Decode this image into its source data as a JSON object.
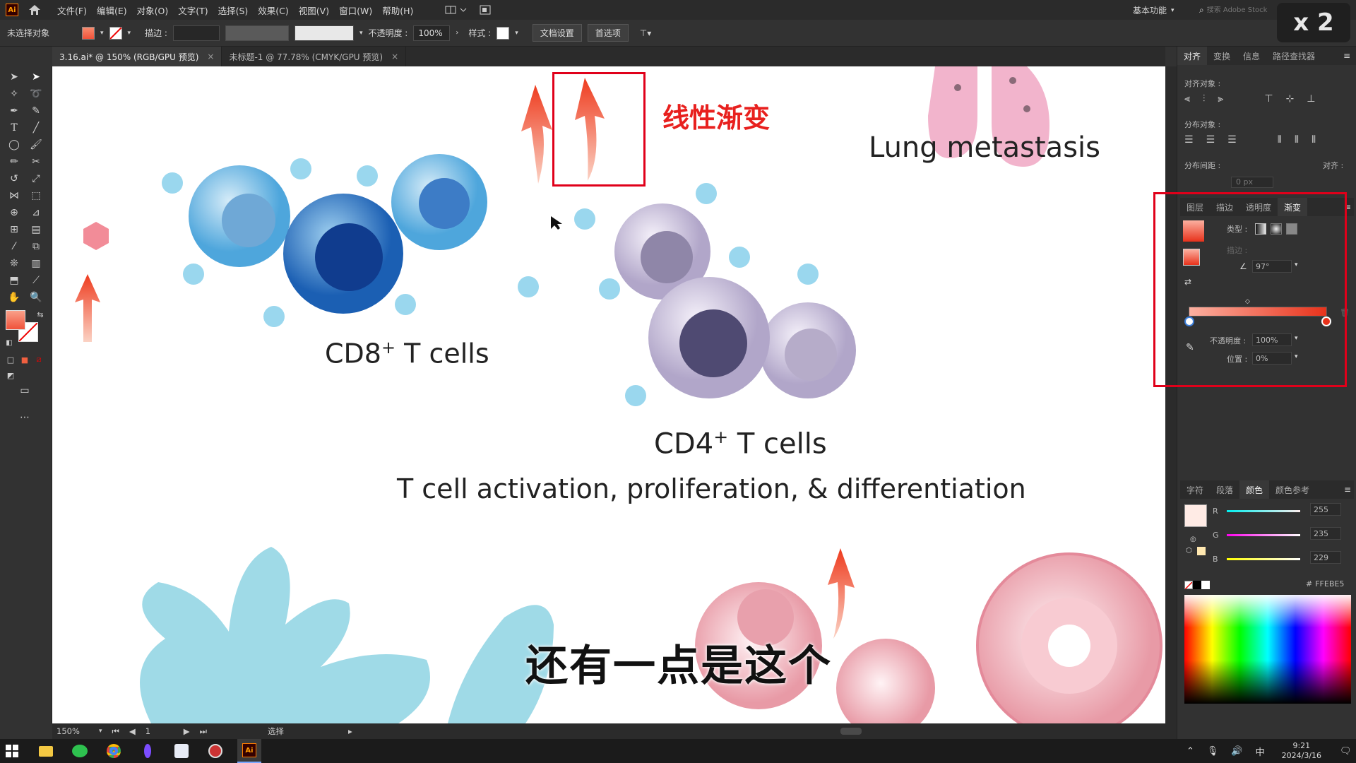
{
  "app": {
    "logo": "Ai",
    "home_icon": "home-icon"
  },
  "menu": [
    "文件(F)",
    "编辑(E)",
    "对象(O)",
    "文字(T)",
    "选择(S)",
    "效果(C)",
    "视图(V)",
    "窗口(W)",
    "帮助(H)"
  ],
  "workspace": {
    "label": "基本功能",
    "search_placeholder": "搜索 Adobe Stock"
  },
  "speed_badge": "x 2",
  "control": {
    "selection": "未选择对象",
    "stroke_label": "描边 :",
    "opacity_label": "不透明度 :",
    "opacity_value": "100%",
    "style_label": "样式 :",
    "doc_setup": "文档设置",
    "preferences": "首选项"
  },
  "tabs": [
    {
      "label": "3.16.ai* @ 150% (RGB/GPU 预览)",
      "close": "×"
    },
    {
      "label": "未标题-1 @ 77.78% (CMYK/GPU 预览)",
      "close": "×"
    }
  ],
  "canvas": {
    "annotation": "线性渐变",
    "lung": "Lung metastasis",
    "cd8": "CD8",
    "cd8_sup": "+",
    "cd8_rest": " T cells",
    "cd4": "CD4",
    "cd4_sup": "+",
    "cd4_rest": " T cells",
    "activation": "T cell activation, proliferation, & differentiation",
    "subtitle": "还有一点是这个"
  },
  "align_panel": {
    "tabs": [
      "对齐",
      "变换",
      "信息",
      "路径查找器"
    ],
    "align_objects": "对齐对象 :",
    "distribute_objects": "分布对象 :",
    "distribute_spacing": "分布间距 :",
    "align_to": "对齐 :",
    "spacing_value": "0 px"
  },
  "gradient_panel": {
    "tabs": [
      "图层",
      "描边",
      "透明度",
      "渐变"
    ],
    "type_label": "类型 :",
    "stroke_label": "描边 :",
    "angle": "97°",
    "opacity_label": "不透明度 :",
    "opacity_value": "100%",
    "position_label": "位置 :",
    "position_value": "0%",
    "start_color": "#fbb0a0",
    "end_color": "#e8321b"
  },
  "color_panel": {
    "tabs": [
      "字符",
      "段落",
      "颜色",
      "颜色参考"
    ],
    "r_label": "R",
    "r": "255",
    "g_label": "G",
    "g": "235",
    "b_label": "B",
    "b": "229",
    "hex_prefix": "#",
    "hex": "FFEBE5"
  },
  "status": {
    "zoom": "150%",
    "page": "1",
    "tool": "选择"
  },
  "taskbar": {
    "time": "9:21",
    "date": "2024/3/16",
    "ime": "中"
  }
}
